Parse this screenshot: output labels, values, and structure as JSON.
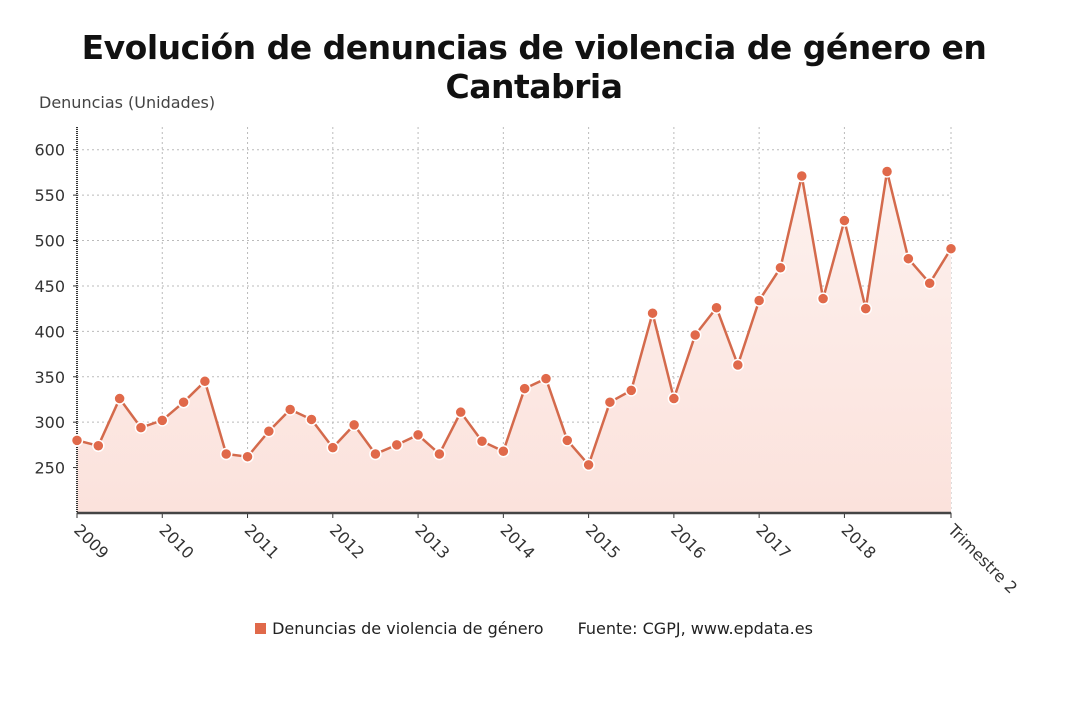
{
  "title": "Evolución de denuncias de violencia de género en Cantabria",
  "colors": {
    "line": "#d46a4c",
    "marker": "#e0694a",
    "fill_top": "#fdf1ee",
    "fill_bottom": "#fbe2dc",
    "grid": "#bbbbbb",
    "axis": "#333333"
  },
  "legend": {
    "series_label": "Denuncias de violencia de género",
    "source": "Fuente: CGPJ, www.epdata.es"
  },
  "chart_data": {
    "type": "area",
    "title": "Evolución de denuncias de violencia de género en Cantabria",
    "ylabel": "Denuncias (Unidades)",
    "xlabel": "",
    "ylim": [
      200,
      625
    ],
    "yticks": [
      250,
      300,
      350,
      400,
      450,
      500,
      550,
      600
    ],
    "grid": true,
    "legend_position": "bottom",
    "x": [
      "2009 T1",
      "2009 T2",
      "2009 T3",
      "2009 T4",
      "2010 T1",
      "2010 T2",
      "2010 T3",
      "2010 T4",
      "2011 T1",
      "2011 T2",
      "2011 T3",
      "2011 T4",
      "2012 T1",
      "2012 T2",
      "2012 T3",
      "2012 T4",
      "2013 T1",
      "2013 T2",
      "2013 T3",
      "2013 T4",
      "2014 T1",
      "2014 T2",
      "2014 T3",
      "2014 T4",
      "2015 T1",
      "2015 T2",
      "2015 T3",
      "2015 T4",
      "2016 T1",
      "2016 T2",
      "2016 T3",
      "2016 T4",
      "2017 T1",
      "2017 T2",
      "2017 T3",
      "2017 T4",
      "2018 T1",
      "2018 T2",
      "2018 T3",
      "2018 T4",
      "2019 T1",
      "2019 T2"
    ],
    "xtick_labels": [
      {
        "index": 0,
        "label": "2009"
      },
      {
        "index": 4,
        "label": "2010"
      },
      {
        "index": 8,
        "label": "2011"
      },
      {
        "index": 12,
        "label": "2012"
      },
      {
        "index": 16,
        "label": "2013"
      },
      {
        "index": 20,
        "label": "2014"
      },
      {
        "index": 24,
        "label": "2015"
      },
      {
        "index": 28,
        "label": "2016"
      },
      {
        "index": 32,
        "label": "2017"
      },
      {
        "index": 36,
        "label": "2018"
      },
      {
        "index": 41,
        "label": "Trimestre 2"
      }
    ],
    "series": [
      {
        "name": "Denuncias de violencia de género",
        "values": [
          280,
          274,
          326,
          294,
          302,
          322,
          345,
          265,
          262,
          290,
          314,
          303,
          272,
          297,
          265,
          275,
          286,
          265,
          311,
          279,
          268,
          337,
          348,
          280,
          253,
          322,
          335,
          420,
          326,
          396,
          426,
          363,
          434,
          470,
          571,
          436,
          522,
          425,
          576,
          480,
          453,
          491
        ]
      }
    ]
  }
}
